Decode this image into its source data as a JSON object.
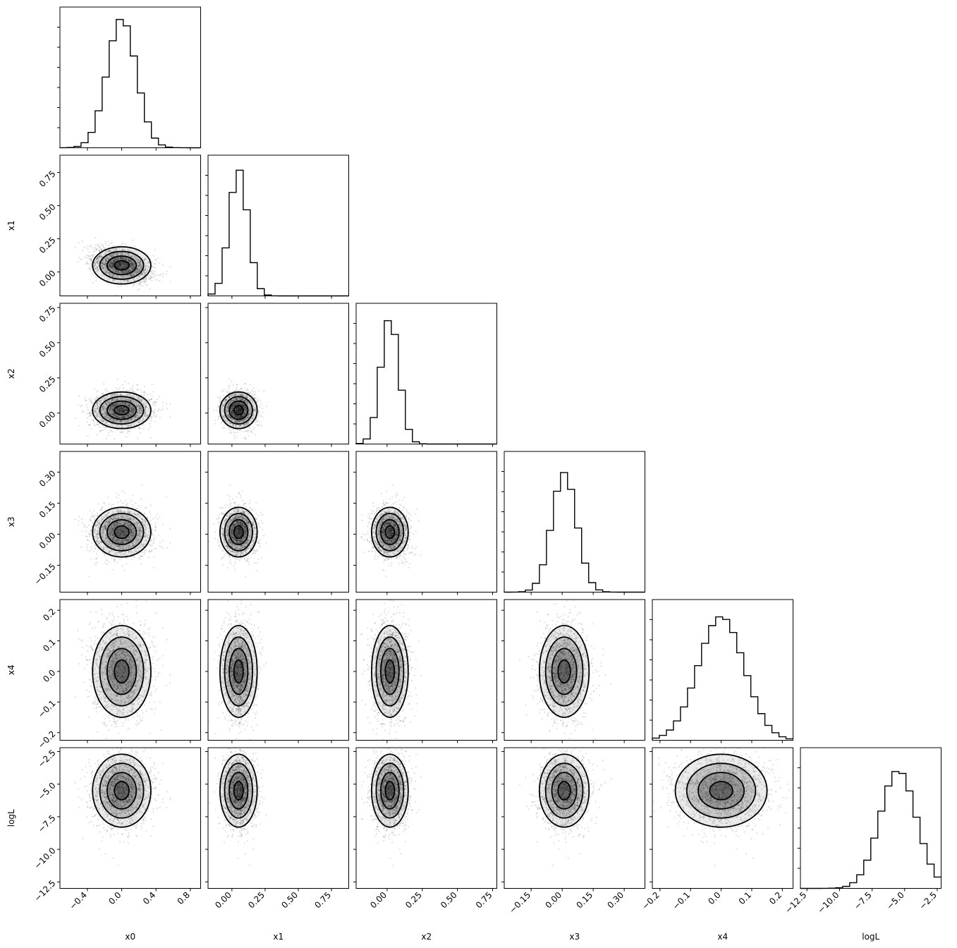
{
  "chart_data": {
    "type": "corner",
    "parameters": [
      "x0",
      "x1",
      "x2",
      "x3",
      "x4",
      "logL"
    ],
    "axis_labels": [
      "x0",
      "x1",
      "x2",
      "x3",
      "x4",
      "logL"
    ],
    "ranges": [
      [
        -0.72,
        0.92
      ],
      [
        -0.18,
        0.88
      ],
      [
        -0.22,
        0.78
      ],
      [
        -0.28,
        0.4
      ],
      [
        -0.225,
        0.235
      ],
      [
        -13.0,
        -2.2
      ]
    ],
    "ticks": [
      {
        "values": [
          -0.4,
          0.0,
          0.4,
          0.8
        ],
        "labels": [
          "−0.4",
          "0.0",
          "0.4",
          "0.8"
        ]
      },
      {
        "values": [
          0.0,
          0.25,
          0.5,
          0.75
        ],
        "labels": [
          "0.00",
          "0.25",
          "0.50",
          "0.75"
        ]
      },
      {
        "values": [
          0.0,
          0.25,
          0.5,
          0.75
        ],
        "labels": [
          "0.00",
          "0.25",
          "0.50",
          "0.75"
        ]
      },
      {
        "values": [
          -0.15,
          0.0,
          0.15,
          0.3
        ],
        "labels": [
          "−0.15",
          "0.00",
          "0.15",
          "0.30"
        ]
      },
      {
        "values": [
          -0.2,
          -0.1,
          0.0,
          0.1,
          0.2
        ],
        "labels": [
          "−0.2",
          "−0.1",
          "0.0",
          "0.1",
          "0.2"
        ]
      },
      {
        "values": [
          -12.5,
          -10.0,
          -7.5,
          -5.0,
          -2.5
        ],
        "labels": [
          "−12.5",
          "−10.0",
          "−7.5",
          "−5.0",
          "−2.5"
        ]
      }
    ],
    "posterior": {
      "means": [
        0.0,
        0.05,
        0.02,
        0.01,
        0.0,
        -5.5
      ],
      "stds": [
        0.17,
        0.07,
        0.065,
        0.06,
        0.075,
        1.4
      ]
    },
    "hist_peak_frac": [
      0.92,
      0.9,
      0.9,
      0.85,
      0.88,
      0.84
    ],
    "contour_levels": [
      0.5,
      1.0,
      1.5,
      2.0
    ],
    "grid": false,
    "legend": "none"
  }
}
